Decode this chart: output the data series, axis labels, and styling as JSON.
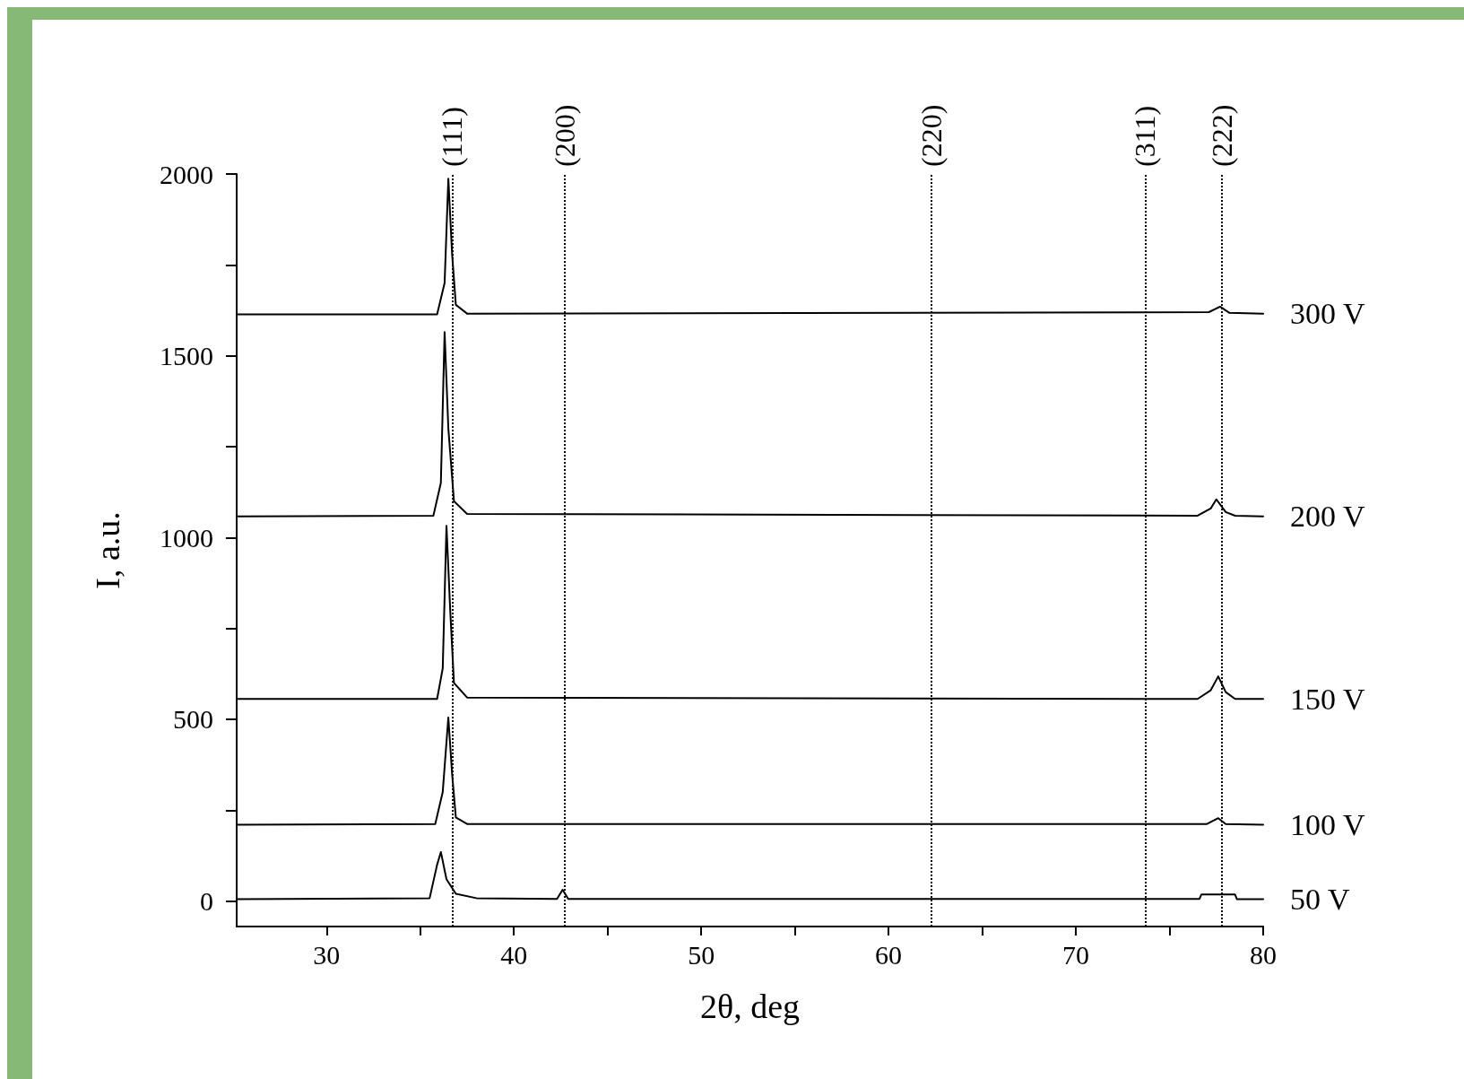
{
  "chart_data": {
    "type": "line",
    "xlabel": "2θ, deg",
    "ylabel": "I, a.u.",
    "xlim": [
      25.2,
      80
    ],
    "ylim": [
      -70,
      2000
    ],
    "xticks": [
      30,
      {
        "value": 35,
        "label": null
      },
      40,
      {
        "value": 45,
        "label": null
      },
      50,
      {
        "value": 55,
        "label": null
      },
      60,
      {
        "value": 65,
        "label": null
      },
      70,
      {
        "value": 75,
        "label": null
      },
      80
    ],
    "yticks": [
      0,
      {
        "value": 250,
        "label": null
      },
      500,
      {
        "value": 750,
        "label": null
      },
      1000,
      {
        "value": 1250,
        "label": null
      },
      1500,
      {
        "value": 1750,
        "label": null
      },
      2000
    ],
    "grid": false,
    "legend": false,
    "marker": "none",
    "line_style": "solid",
    "series": [
      {
        "name": "300 V",
        "color": "#000000",
        "x": [
          25.2,
          35.9,
          36.3,
          36.5,
          36.7,
          36.9,
          37.5,
          77.1,
          77.7,
          78.2,
          80
        ],
        "values": [
          1614,
          1614,
          1700,
          1987,
          1780,
          1640,
          1616,
          1620,
          1635,
          1618,
          1616
        ]
      },
      {
        "name": "200 V",
        "color": "#000000",
        "x": [
          25.2,
          35.7,
          36.1,
          36.3,
          36.5,
          36.8,
          37.5,
          76.5,
          77.2,
          77.5,
          78,
          78.5,
          80
        ],
        "values": [
          1058,
          1060,
          1150,
          1565,
          1300,
          1100,
          1065,
          1060,
          1080,
          1105,
          1070,
          1060,
          1058
        ]
      },
      {
        "name": "150 V",
        "color": "#000000",
        "x": [
          25.2,
          35.9,
          36.2,
          36.4,
          36.6,
          36.8,
          37.5,
          76.5,
          77.2,
          77.6,
          78,
          78.5,
          80
        ],
        "values": [
          556,
          556,
          640,
          1032,
          800,
          600,
          560,
          556,
          580,
          618,
          575,
          556,
          556
        ]
      },
      {
        "name": "100 V",
        "color": "#000000",
        "x": [
          25.2,
          35.8,
          36.2,
          36.5,
          36.7,
          36.9,
          37.5,
          77,
          77.6,
          78,
          80
        ],
        "values": [
          210,
          212,
          300,
          505,
          350,
          230,
          212,
          212,
          228,
          212,
          210
        ]
      },
      {
        "name": "50 V",
        "color": "#000000",
        "x": [
          25.2,
          35.5,
          35.9,
          36.1,
          36.4,
          36.9,
          38,
          42.3,
          42.6,
          42.9,
          76.6,
          76.7,
          78.5,
          78.6,
          80
        ],
        "values": [
          5,
          8,
          100,
          135,
          60,
          20,
          8,
          6,
          31,
          6,
          6,
          18,
          18,
          5,
          5
        ]
      }
    ],
    "ref_lines": [
      {
        "axis": "x",
        "value": 36.7,
        "color": "#000000",
        "line_style": "dotted"
      },
      {
        "axis": "x",
        "value": 42.7,
        "color": "#000000",
        "line_style": "dotted"
      },
      {
        "axis": "x",
        "value": 62.3,
        "color": "#000000",
        "line_style": "dotted"
      },
      {
        "axis": "x",
        "value": 73.7,
        "color": "#000000",
        "line_style": "dotted"
      },
      {
        "axis": "x",
        "value": 77.8,
        "color": "#000000",
        "line_style": "dotted"
      }
    ],
    "annotations": [
      "(111)",
      "(200)",
      "(220)",
      "(311)",
      "(222)"
    ]
  }
}
